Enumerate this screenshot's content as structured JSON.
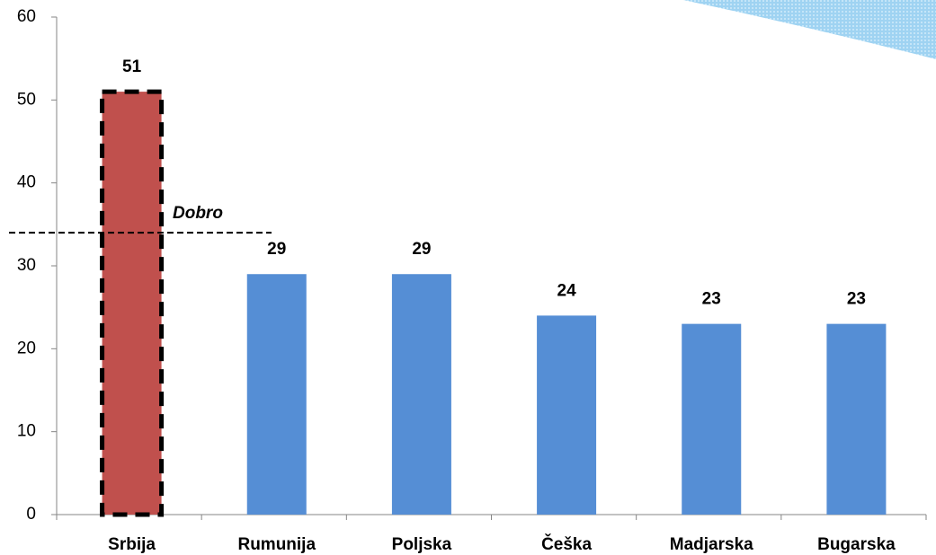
{
  "chart_data": {
    "type": "bar",
    "categories": [
      "Srbija",
      "Rumunija",
      "Poljska",
      "Češka",
      "Madjarska",
      "Bugarska"
    ],
    "values": [
      51,
      29,
      29,
      24,
      23,
      23
    ],
    "colors": [
      "#c0504d",
      "#558ed5",
      "#558ed5",
      "#558ed5",
      "#558ed5",
      "#558ed5"
    ],
    "ylim": [
      0,
      60
    ],
    "yticks": [
      0,
      10,
      20,
      30,
      40,
      50,
      60
    ],
    "grid": false,
    "reference_line": {
      "value": 34,
      "label": "Dobro"
    }
  }
}
